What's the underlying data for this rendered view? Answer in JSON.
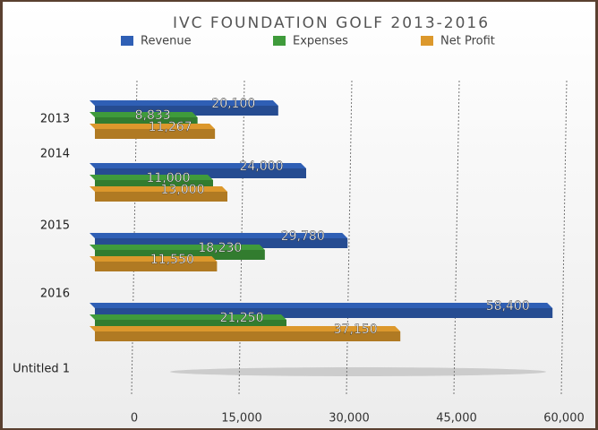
{
  "chart_data": {
    "type": "bar",
    "orientation": "horizontal",
    "title": "IVC FOUNDATION GOLF 2013-2016",
    "categories": [
      "2013",
      "2014",
      "2015",
      "2016",
      "Untitled 1"
    ],
    "series": [
      {
        "name": "Revenue",
        "color": "#2f5fb5",
        "values": [
          20100,
          24000,
          29780,
          58400,
          null
        ],
        "value_labels": [
          "20,100",
          "24,000",
          "29,780",
          "58,400",
          null
        ]
      },
      {
        "name": "Expenses",
        "color": "#3f9b3b",
        "values": [
          8833,
          11000,
          18230,
          21250,
          null
        ],
        "value_labels": [
          "8,833",
          "11,000",
          "18,230",
          "21,250",
          null
        ]
      },
      {
        "name": "Net Profit",
        "color": "#dc982c",
        "values": [
          11267,
          13000,
          11550,
          37150,
          null
        ],
        "value_labels": [
          "11,267",
          "13,000",
          "11,550",
          "37,150",
          null
        ]
      }
    ],
    "xlim": [
      0,
      60000
    ],
    "xticks": [
      0,
      {
        "value": 15000,
        "label": "15,000"
      },
      {
        "value": 30000,
        "label": "30,000"
      },
      {
        "value": 45000,
        "label": "45,000"
      },
      {
        "value": 60000,
        "label": "60,000"
      }
    ],
    "grid": true,
    "legend": "top"
  }
}
